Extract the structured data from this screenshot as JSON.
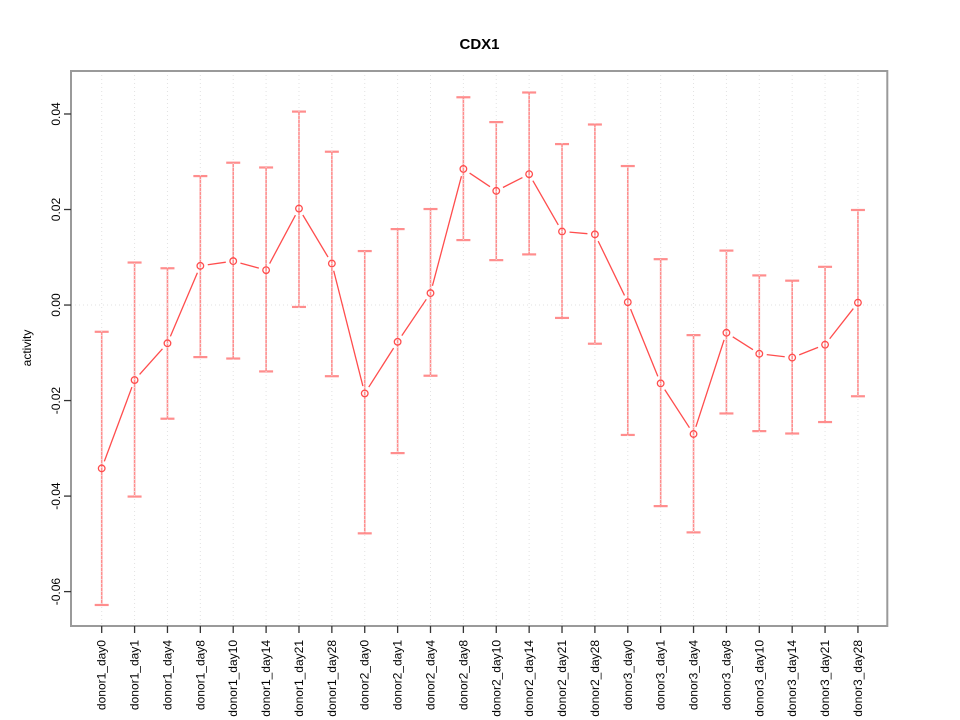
{
  "chart_data": {
    "type": "line",
    "title": "CDX1",
    "xlabel": "",
    "ylabel": "activity",
    "categories": [
      "donor1_day0",
      "donor1_day1",
      "donor1_day4",
      "donor1_day8",
      "donor1_day10",
      "donor1_day14",
      "donor1_day21",
      "donor1_day28",
      "donor2_day0",
      "donor2_day1",
      "donor2_day4",
      "donor2_day8",
      "donor2_day10",
      "donor2_day14",
      "donor2_day21",
      "donor2_day28",
      "donor3_day0",
      "donor3_day1",
      "donor3_day4",
      "donor3_day8",
      "donor3_day10",
      "donor3_day14",
      "donor3_day21",
      "donor3_day28"
    ],
    "series": [
      {
        "name": "CDX1 activity",
        "marker": "open-circle",
        "values": [
          -0.0342,
          -0.0157,
          -0.008,
          0.0082,
          0.0092,
          0.0073,
          0.0202,
          0.0087,
          -0.0185,
          -0.0077,
          0.0025,
          0.0285,
          0.0239,
          0.0274,
          0.0154,
          0.0148,
          0.0006,
          -0.0164,
          -0.027,
          -0.0058,
          -0.0102,
          -0.011,
          -0.0083,
          0.0005
        ],
        "err_high": [
          -0.0056,
          0.0089,
          0.0077,
          0.027,
          0.0298,
          0.0288,
          0.0405,
          0.0321,
          0.0113,
          0.0159,
          0.0201,
          0.0435,
          0.0383,
          0.0445,
          0.0337,
          0.0378,
          0.0291,
          0.0096,
          -0.0063,
          0.0114,
          0.0062,
          0.0051,
          0.008,
          0.0199
        ],
        "err_low": [
          -0.0628,
          -0.0401,
          -0.0238,
          -0.0109,
          -0.0112,
          -0.0139,
          -0.0004,
          -0.0149,
          -0.0478,
          -0.031,
          -0.0148,
          0.0136,
          0.0094,
          0.0106,
          -0.0027,
          -0.0081,
          -0.0272,
          -0.0421,
          -0.0476,
          -0.0227,
          -0.0264,
          -0.0269,
          -0.0245,
          -0.0191
        ]
      }
    ],
    "ylim": [
      -0.0672,
      0.049
    ],
    "yticks": [
      {
        "value": 0.04,
        "label": "0.04"
      },
      {
        "value": 0.02,
        "label": "0.02"
      },
      {
        "value": 0.0,
        "label": "0.00"
      },
      {
        "value": -0.02,
        "label": "-0.02"
      },
      {
        "value": -0.04,
        "label": "-0.04"
      },
      {
        "value": -0.06,
        "label": "-0.06"
      }
    ],
    "grid": {
      "vertical": "dotted",
      "horizontal_zero_line": "dotted",
      "grid_color": "#e2e2e2"
    },
    "legend": "none",
    "colors": {
      "line": "#ff4d4d",
      "error_bar": "#ff8d8d",
      "box": "#9a9a9a",
      "tick": "#333333",
      "text": "#000000"
    }
  }
}
